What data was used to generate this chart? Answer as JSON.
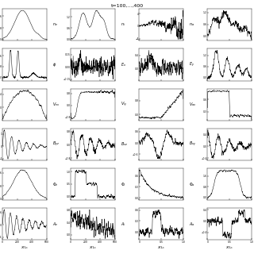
{
  "title": "t=100,...,400",
  "ncols": 4,
  "nrows": 6,
  "figsize": [
    3.2,
    3.2
  ],
  "dpi": 100,
  "bg_color": "#ffffff",
  "line_color": "#000000",
  "xlim_left": [
    0,
    600
  ],
  "xlim_right": [
    0,
    1.0
  ],
  "xlabel_left": "X/L_s",
  "xlabel_right": "X/L_s"
}
